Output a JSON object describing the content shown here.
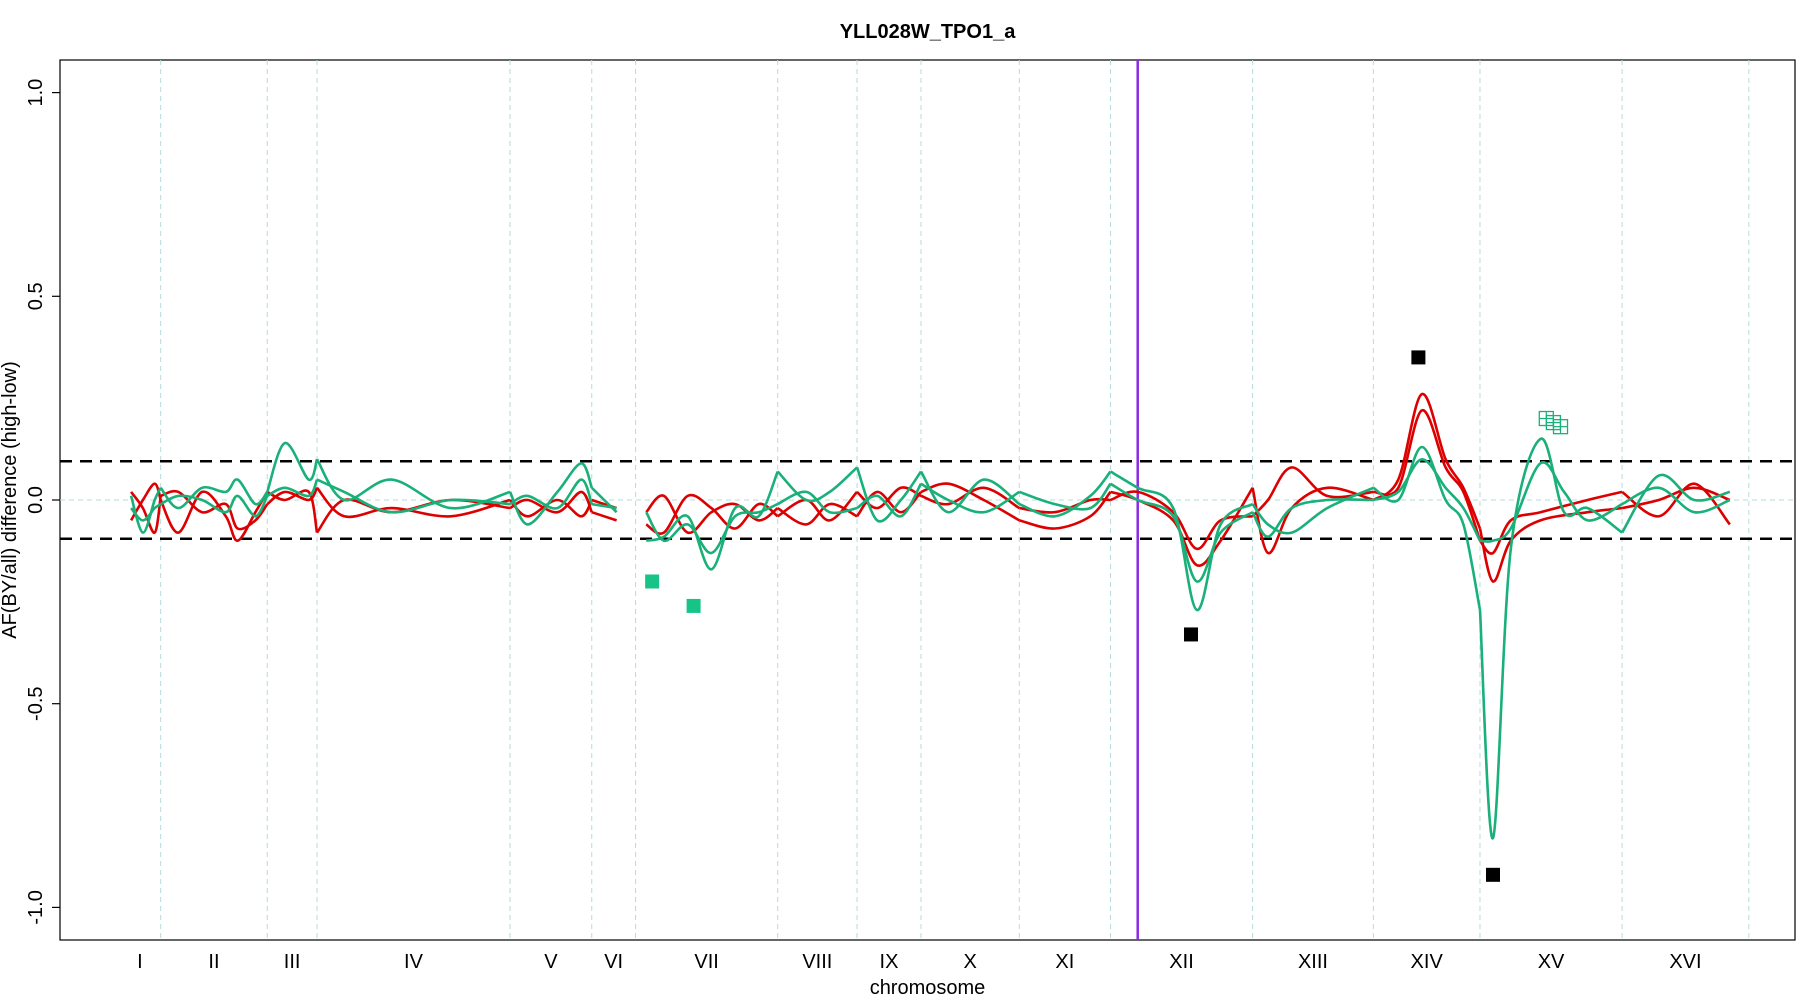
{
  "chart_data": {
    "type": "line",
    "title": "YLL028W_TPO1_a",
    "xlabel": "chromosome",
    "ylabel": "AF(BY/all) difference (high-low)",
    "ylim": [
      -1.08,
      1.08
    ],
    "yticks": [
      -1.0,
      -0.5,
      0.0,
      0.5,
      1.0
    ],
    "ytick_labels": [
      "-1.0",
      "-0.5",
      "0.0",
      "0.5",
      "1.0"
    ],
    "chromosomes": [
      {
        "name": "I",
        "start": 0.0,
        "end": 0.35
      },
      {
        "name": "II",
        "start": 0.35,
        "end": 1.25
      },
      {
        "name": "III",
        "start": 1.25,
        "end": 1.67
      },
      {
        "name": "IV",
        "start": 1.67,
        "end": 3.3
      },
      {
        "name": "V",
        "start": 3.3,
        "end": 3.99
      },
      {
        "name": "VI",
        "start": 3.99,
        "end": 4.36
      },
      {
        "name": "VII",
        "start": 4.36,
        "end": 5.56
      },
      {
        "name": "VIII",
        "start": 5.56,
        "end": 6.23
      },
      {
        "name": "IX",
        "start": 6.23,
        "end": 6.77
      },
      {
        "name": "X",
        "start": 6.77,
        "end": 7.6
      },
      {
        "name": "XI",
        "start": 7.6,
        "end": 8.37
      },
      {
        "name": "XII",
        "start": 8.37,
        "end": 9.57
      },
      {
        "name": "XIII",
        "start": 9.57,
        "end": 10.59
      },
      {
        "name": "XIV",
        "start": 10.59,
        "end": 11.49
      },
      {
        "name": "XV",
        "start": 11.49,
        "end": 12.69
      },
      {
        "name": "XVI",
        "start": 12.69,
        "end": 13.76
      }
    ],
    "xlim": [
      -0.5,
      14.15
    ],
    "threshold_lines": [
      0.095,
      -0.095
    ],
    "zero_line": 0.0,
    "gene_marker_position": 8.6,
    "colors": {
      "red": "#dd0000",
      "green": "#1ab07a",
      "green_marker": "#17c487",
      "black": "#000000",
      "purple": "#8a2be2",
      "grid": "#b7dcdc",
      "dashed": "#000000"
    },
    "series": [
      {
        "color": "red",
        "points": [
          [
            0.1,
            -0.05
          ],
          [
            0.2,
            0.0
          ],
          [
            0.3,
            0.04
          ],
          [
            0.35,
            0.0
          ],
          [
            0.5,
            -0.08
          ],
          [
            0.7,
            0.02
          ],
          [
            0.9,
            -0.04
          ],
          [
            1.0,
            -0.1
          ],
          [
            1.15,
            -0.03
          ],
          [
            1.25,
            0.02
          ],
          [
            1.4,
            0.0
          ],
          [
            1.6,
            0.02
          ],
          [
            1.67,
            -0.08
          ],
          [
            1.9,
            0.0
          ],
          [
            2.3,
            -0.03
          ],
          [
            2.8,
            0.0
          ],
          [
            3.3,
            -0.02
          ],
          [
            3.45,
            0.0
          ],
          [
            3.7,
            -0.03
          ],
          [
            3.9,
            0.02
          ],
          [
            3.99,
            -0.03
          ],
          [
            4.2,
            -0.05
          ],
          [
            4.45,
            -0.03
          ],
          [
            4.6,
            0.01
          ],
          [
            4.8,
            -0.08
          ],
          [
            5.0,
            -0.03
          ],
          [
            5.2,
            -0.01
          ],
          [
            5.4,
            -0.05
          ],
          [
            5.56,
            -0.02
          ],
          [
            5.8,
            -0.06
          ],
          [
            6.0,
            -0.01
          ],
          [
            6.23,
            -0.04
          ],
          [
            6.4,
            0.02
          ],
          [
            6.6,
            -0.03
          ],
          [
            6.77,
            0.02
          ],
          [
            7.0,
            0.04
          ],
          [
            7.3,
            0.0
          ],
          [
            7.6,
            -0.05
          ],
          [
            7.9,
            -0.07
          ],
          [
            8.2,
            -0.04
          ],
          [
            8.37,
            0.02
          ],
          [
            8.6,
            0.0
          ],
          [
            8.9,
            -0.05
          ],
          [
            9.1,
            -0.16
          ],
          [
            9.3,
            -0.1
          ],
          [
            9.57,
            0.03
          ],
          [
            9.7,
            -0.13
          ],
          [
            9.9,
            -0.02
          ],
          [
            10.2,
            0.03
          ],
          [
            10.59,
            0.0
          ],
          [
            10.8,
            0.05
          ],
          [
            11.0,
            0.26
          ],
          [
            11.2,
            0.1
          ],
          [
            11.35,
            0.03
          ],
          [
            11.49,
            -0.07
          ],
          [
            11.6,
            -0.2
          ],
          [
            11.75,
            -0.1
          ],
          [
            12.0,
            -0.05
          ],
          [
            12.4,
            -0.03
          ],
          [
            12.69,
            -0.02
          ],
          [
            13.0,
            0.0
          ],
          [
            13.3,
            0.03
          ],
          [
            13.6,
            0.0
          ]
        ]
      },
      {
        "color": "red",
        "points": [
          [
            0.1,
            0.02
          ],
          [
            0.2,
            -0.02
          ],
          [
            0.3,
            -0.08
          ],
          [
            0.35,
            0.01
          ],
          [
            0.5,
            0.02
          ],
          [
            0.7,
            -0.03
          ],
          [
            0.9,
            -0.01
          ],
          [
            1.0,
            -0.07
          ],
          [
            1.15,
            -0.05
          ],
          [
            1.25,
            -0.01
          ],
          [
            1.4,
            0.02
          ],
          [
            1.6,
            0.0
          ],
          [
            1.67,
            0.03
          ],
          [
            1.9,
            -0.04
          ],
          [
            2.3,
            -0.02
          ],
          [
            2.8,
            -0.04
          ],
          [
            3.3,
            0.0
          ],
          [
            3.45,
            -0.04
          ],
          [
            3.7,
            0.0
          ],
          [
            3.9,
            -0.04
          ],
          [
            3.99,
            0.0
          ],
          [
            4.2,
            -0.02
          ],
          [
            4.45,
            -0.06
          ],
          [
            4.6,
            -0.08
          ],
          [
            4.8,
            0.01
          ],
          [
            5.0,
            -0.02
          ],
          [
            5.2,
            -0.07
          ],
          [
            5.4,
            -0.01
          ],
          [
            5.56,
            -0.04
          ],
          [
            5.8,
            0.0
          ],
          [
            6.0,
            -0.05
          ],
          [
            6.23,
            0.02
          ],
          [
            6.4,
            -0.02
          ],
          [
            6.6,
            0.03
          ],
          [
            6.77,
            0.01
          ],
          [
            7.0,
            -0.01
          ],
          [
            7.3,
            0.03
          ],
          [
            7.6,
            -0.02
          ],
          [
            7.9,
            -0.03
          ],
          [
            8.2,
            0.0
          ],
          [
            8.37,
            0.0
          ],
          [
            8.6,
            0.02
          ],
          [
            8.9,
            -0.03
          ],
          [
            9.1,
            -0.12
          ],
          [
            9.3,
            -0.05
          ],
          [
            9.57,
            -0.04
          ],
          [
            9.7,
            0.0
          ],
          [
            9.9,
            0.08
          ],
          [
            10.2,
            0.01
          ],
          [
            10.59,
            0.02
          ],
          [
            10.8,
            0.03
          ],
          [
            11.0,
            0.22
          ],
          [
            11.2,
            0.08
          ],
          [
            11.35,
            0.02
          ],
          [
            11.49,
            -0.1
          ],
          [
            11.6,
            -0.13
          ],
          [
            11.75,
            -0.05
          ],
          [
            12.0,
            -0.03
          ],
          [
            12.4,
            0.0
          ],
          [
            12.69,
            0.02
          ],
          [
            13.0,
            -0.04
          ],
          [
            13.3,
            0.04
          ],
          [
            13.6,
            -0.06
          ]
        ]
      },
      {
        "color": "green",
        "points": [
          [
            0.1,
            0.01
          ],
          [
            0.2,
            -0.08
          ],
          [
            0.3,
            0.0
          ],
          [
            0.35,
            0.03
          ],
          [
            0.5,
            -0.02
          ],
          [
            0.7,
            0.03
          ],
          [
            0.9,
            0.02
          ],
          [
            1.0,
            0.05
          ],
          [
            1.15,
            -0.01
          ],
          [
            1.25,
            0.02
          ],
          [
            1.4,
            0.14
          ],
          [
            1.6,
            0.05
          ],
          [
            1.67,
            0.1
          ],
          [
            1.9,
            0.0
          ],
          [
            2.3,
            0.05
          ],
          [
            2.8,
            -0.02
          ],
          [
            3.3,
            0.02
          ],
          [
            3.45,
            -0.06
          ],
          [
            3.7,
            0.02
          ],
          [
            3.9,
            0.09
          ],
          [
            3.99,
            0.03
          ],
          [
            4.2,
            -0.03
          ],
          [
            4.45,
            -0.1
          ],
          [
            4.6,
            -0.09
          ],
          [
            4.8,
            -0.04
          ],
          [
            5.0,
            -0.17
          ],
          [
            5.2,
            -0.02
          ],
          [
            5.4,
            -0.04
          ],
          [
            5.56,
            0.07
          ],
          [
            5.8,
            0.0
          ],
          [
            6.0,
            0.02
          ],
          [
            6.23,
            0.08
          ],
          [
            6.4,
            -0.05
          ],
          [
            6.6,
            0.0
          ],
          [
            6.77,
            0.07
          ],
          [
            7.0,
            -0.03
          ],
          [
            7.3,
            0.05
          ],
          [
            7.6,
            -0.01
          ],
          [
            7.9,
            -0.04
          ],
          [
            8.2,
            0.01
          ],
          [
            8.37,
            0.07
          ],
          [
            8.6,
            0.03
          ],
          [
            8.9,
            -0.02
          ],
          [
            9.1,
            -0.27
          ],
          [
            9.3,
            -0.06
          ],
          [
            9.57,
            -0.01
          ],
          [
            9.7,
            -0.06
          ],
          [
            9.9,
            -0.08
          ],
          [
            10.2,
            -0.02
          ],
          [
            10.59,
            0.03
          ],
          [
            10.8,
            0.0
          ],
          [
            11.0,
            0.13
          ],
          [
            11.2,
            0.0
          ],
          [
            11.35,
            -0.06
          ],
          [
            11.49,
            -0.27
          ],
          [
            11.6,
            -0.83
          ],
          [
            11.75,
            -0.12
          ],
          [
            12.0,
            0.15
          ],
          [
            12.2,
            -0.03
          ],
          [
            12.4,
            -0.02
          ],
          [
            12.69,
            -0.08
          ],
          [
            13.0,
            0.06
          ],
          [
            13.3,
            0.0
          ],
          [
            13.6,
            0.02
          ]
        ]
      },
      {
        "color": "green",
        "points": [
          [
            0.1,
            -0.02
          ],
          [
            0.2,
            -0.05
          ],
          [
            0.3,
            -0.02
          ],
          [
            0.35,
            -0.01
          ],
          [
            0.5,
            0.01
          ],
          [
            0.7,
            0.0
          ],
          [
            0.9,
            -0.03
          ],
          [
            1.0,
            0.01
          ],
          [
            1.15,
            -0.04
          ],
          [
            1.25,
            0.01
          ],
          [
            1.4,
            0.03
          ],
          [
            1.6,
            0.01
          ],
          [
            1.67,
            0.05
          ],
          [
            1.9,
            0.02
          ],
          [
            2.3,
            -0.03
          ],
          [
            2.8,
            0.0
          ],
          [
            3.3,
            -0.01
          ],
          [
            3.45,
            0.01
          ],
          [
            3.7,
            -0.02
          ],
          [
            3.9,
            0.05
          ],
          [
            3.99,
            -0.01
          ],
          [
            4.2,
            -0.02
          ],
          [
            4.45,
            -0.03
          ],
          [
            4.6,
            -0.1
          ],
          [
            4.8,
            -0.06
          ],
          [
            5.0,
            -0.13
          ],
          [
            5.2,
            -0.04
          ],
          [
            5.4,
            -0.03
          ],
          [
            5.56,
            -0.01
          ],
          [
            5.8,
            0.02
          ],
          [
            6.0,
            -0.03
          ],
          [
            6.23,
            -0.02
          ],
          [
            6.4,
            0.01
          ],
          [
            6.6,
            -0.04
          ],
          [
            6.77,
            0.04
          ],
          [
            7.0,
            0.0
          ],
          [
            7.3,
            -0.03
          ],
          [
            7.6,
            0.02
          ],
          [
            7.9,
            -0.01
          ],
          [
            8.2,
            -0.02
          ],
          [
            8.37,
            0.04
          ],
          [
            8.6,
            0.0
          ],
          [
            8.9,
            -0.04
          ],
          [
            9.1,
            -0.2
          ],
          [
            9.3,
            -0.08
          ],
          [
            9.57,
            -0.03
          ],
          [
            9.7,
            -0.09
          ],
          [
            9.9,
            -0.02
          ],
          [
            10.2,
            0.0
          ],
          [
            10.59,
            0.0
          ],
          [
            10.8,
            0.02
          ],
          [
            11.0,
            0.1
          ],
          [
            11.2,
            0.03
          ],
          [
            11.35,
            -0.02
          ],
          [
            11.49,
            -0.1
          ],
          [
            11.6,
            -0.1
          ],
          [
            11.75,
            -0.07
          ],
          [
            12.0,
            0.09
          ],
          [
            12.2,
            0.02
          ],
          [
            12.4,
            -0.05
          ],
          [
            12.69,
            -0.01
          ],
          [
            13.0,
            0.03
          ],
          [
            13.3,
            -0.03
          ],
          [
            13.6,
            0.0
          ]
        ]
      }
    ],
    "markers": [
      {
        "x": 4.5,
        "y": -0.2,
        "color": "green_marker",
        "style": "filled"
      },
      {
        "x": 4.85,
        "y": -0.26,
        "color": "green_marker",
        "style": "filled"
      },
      {
        "x": 9.05,
        "y": -0.33,
        "color": "black",
        "style": "filled"
      },
      {
        "x": 10.97,
        "y": 0.35,
        "color": "black",
        "style": "filled"
      },
      {
        "x": 11.6,
        "y": -0.92,
        "color": "black",
        "style": "filled"
      },
      {
        "x": 12.05,
        "y": 0.2,
        "color": "green",
        "style": "open-cross"
      },
      {
        "x": 12.11,
        "y": 0.19,
        "color": "green",
        "style": "open-cross"
      },
      {
        "x": 12.17,
        "y": 0.18,
        "color": "green",
        "style": "open-cross"
      }
    ]
  }
}
